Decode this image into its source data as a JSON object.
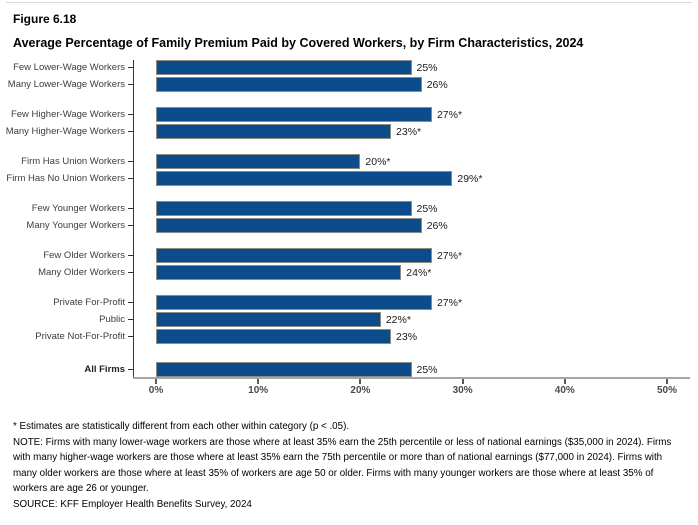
{
  "header": {
    "figure_label": "Figure 6.18",
    "title": "Average Percentage of Family Premium Paid by Covered Workers, by Firm Characteristics, 2024"
  },
  "chart_data": {
    "type": "bar",
    "orientation": "horizontal",
    "title": "Average Percentage of Family Premium Paid by Covered Workers, by Firm Characteristics, 2024",
    "xlabel": "",
    "ylabel": "",
    "xlim": [
      0,
      50
    ],
    "grid": false,
    "legend": "none",
    "x_ticks": [
      "0%",
      "10%",
      "20%",
      "30%",
      "40%",
      "50%"
    ],
    "x_tick_values": [
      0,
      10,
      20,
      30,
      40,
      50
    ],
    "bar_color": "#0d4c8a",
    "bar_border_color": "#8c8c85",
    "groups": [
      {
        "rows": [
          {
            "label": "Few Lower-Wage Workers",
            "value": 25,
            "display": "25%"
          },
          {
            "label": "Many Lower-Wage Workers",
            "value": 26,
            "display": "26%"
          }
        ]
      },
      {
        "rows": [
          {
            "label": "Few Higher-Wage Workers",
            "value": 27,
            "display": "27%*"
          },
          {
            "label": "Many Higher-Wage Workers",
            "value": 23,
            "display": "23%*"
          }
        ]
      },
      {
        "rows": [
          {
            "label": "Firm Has Union Workers",
            "value": 20,
            "display": "20%*"
          },
          {
            "label": "Firm Has No Union Workers",
            "value": 29,
            "display": "29%*"
          }
        ]
      },
      {
        "rows": [
          {
            "label": "Few Younger Workers",
            "value": 25,
            "display": "25%"
          },
          {
            "label": "Many Younger Workers",
            "value": 26,
            "display": "26%"
          }
        ]
      },
      {
        "rows": [
          {
            "label": "Few Older Workers",
            "value": 27,
            "display": "27%*"
          },
          {
            "label": "Many Older Workers",
            "value": 24,
            "display": "24%*"
          }
        ]
      },
      {
        "rows": [
          {
            "label": "Private For-Profit",
            "value": 27,
            "display": "27%*"
          },
          {
            "label": "Public",
            "value": 22,
            "display": "22%*"
          },
          {
            "label": "Private Not-For-Profit",
            "value": 23,
            "display": "23%"
          }
        ]
      },
      {
        "rows": [
          {
            "label": "All Firms",
            "value": 25,
            "display": "25%",
            "bold": true
          }
        ]
      }
    ]
  },
  "footnotes": {
    "asterisk_note": "* Estimates are statistically different from each other within category (p < .05).",
    "note": "NOTE: Firms with many lower-wage workers are those where at least 35% earn the 25th percentile or less of national earnings ($35,000 in 2024). Firms with many higher-wage workers are those where at least 35% earn the 75th percentile or more than of national earnings ($77,000 in 2024). Firms with many older workers are those where at least 35% of workers are age 50 or older. Firms with many younger workers are those where at least 35% of workers are age 26 or younger.",
    "source": "SOURCE: KFF Employer Health Benefits Survey, 2024"
  }
}
